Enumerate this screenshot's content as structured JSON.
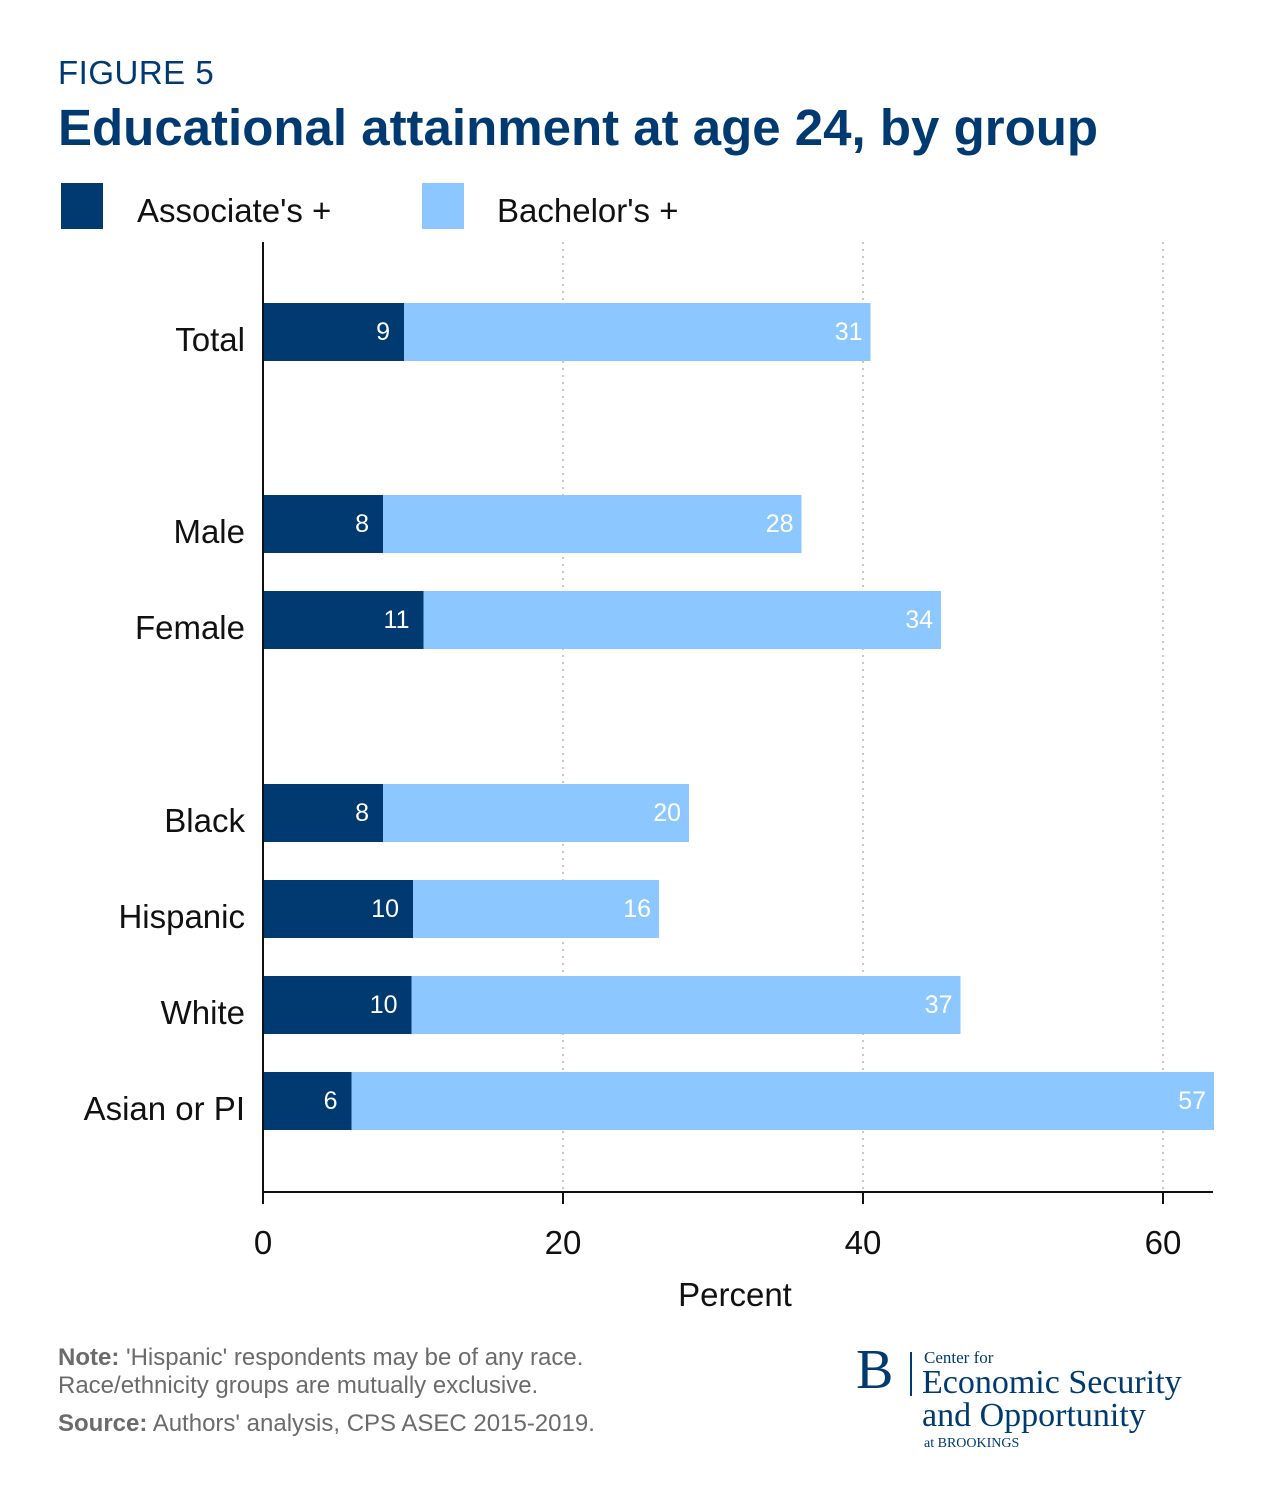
{
  "figure_label": "FIGURE 5",
  "colors": {
    "associates": "#003a70",
    "bachelors": "#8cc8ff",
    "title": "#003a70"
  },
  "legend": {
    "associates": "Associate's +",
    "bachelors": "Bachelor's +"
  },
  "chart_data": {
    "type": "bar",
    "orientation": "horizontal",
    "stacked": true,
    "title": "Educational attainment at age 24, by group",
    "categories": [
      "Total",
      "Male",
      "Female",
      "Black",
      "Hispanic",
      "White",
      "Asian or PI"
    ],
    "series": [
      {
        "name": "Associate's +",
        "values": [
          9,
          8,
          11,
          8,
          10,
          10,
          6
        ]
      },
      {
        "name": "Bachelor's +",
        "values": [
          31,
          28,
          34,
          20,
          16,
          37,
          57
        ]
      }
    ],
    "bar_ends": [
      9.4,
      8,
      10.7,
      8,
      10,
      9.9,
      5.9
    ],
    "bar_totals": [
      40.5,
      35.9,
      45.2,
      28.4,
      26.4,
      46.5,
      63.4
    ],
    "xlabel": "Percent",
    "ylabel": "",
    "xlim": [
      0,
      63.4
    ],
    "xticks": [
      0,
      20,
      40,
      60
    ],
    "grid": "vertical dotted"
  },
  "note": {
    "label": "Note:",
    "line1": "'Hispanic' respondents may be of any race.",
    "line2": "Race/ethnicity groups are mutually exclusive."
  },
  "source": {
    "label": "Source:",
    "text": "Authors' analysis, CPS ASEC 2015-2019."
  },
  "logo": {
    "letter": "B",
    "small": "Center for",
    "line1": "Economic Security",
    "line2": "and Opportunity",
    "bottom": "at BROOKINGS"
  }
}
